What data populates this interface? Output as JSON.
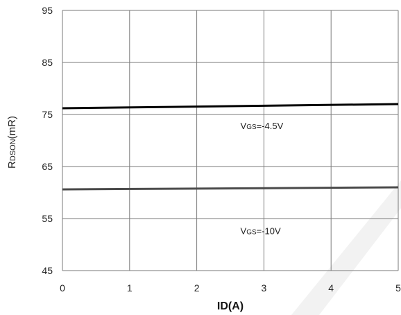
{
  "chart_data": {
    "type": "line",
    "x_ticks": [
      0,
      1,
      2,
      3,
      4,
      5
    ],
    "y_ticks": [
      95,
      85,
      75,
      65,
      55,
      45
    ],
    "xlim": [
      0,
      5
    ],
    "ylim": [
      45,
      95
    ],
    "grid": true,
    "xlabel": "ID(A)",
    "ylabel": {
      "main": "R",
      "sub": "DSON",
      "rest": "(mR)"
    },
    "series": [
      {
        "x": [
          0,
          5
        ],
        "y": [
          76.2,
          77.0
        ],
        "color": "#000000"
      },
      {
        "x": [
          0,
          5
        ],
        "y": [
          60.6,
          61.0
        ],
        "color": "#4a4a4a"
      }
    ],
    "annotations": [
      {
        "main": "V",
        "sub": "GS",
        "rest": "=-4.5V",
        "x": 2.65,
        "y": 72.2
      },
      {
        "main": "V",
        "sub": "GS",
        "rest": "=-10V",
        "x": 2.65,
        "y": 52.0
      }
    ],
    "watermark_color": "#f2f2f2"
  }
}
